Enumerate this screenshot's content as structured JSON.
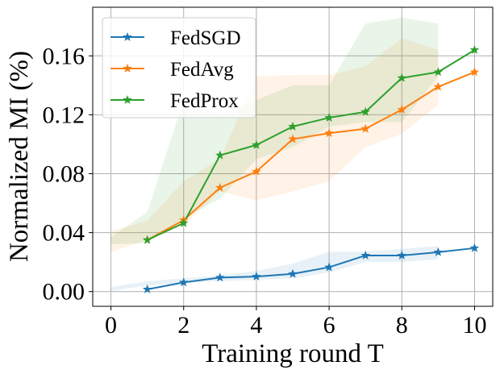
{
  "chart_data": {
    "type": "line",
    "title": "",
    "xlabel": "Training round T",
    "ylabel": "Normalized MI (%)",
    "xlim": [
      -0.5,
      10.5
    ],
    "ylim": [
      -0.01,
      0.193
    ],
    "xticks": [
      0,
      2,
      4,
      6,
      8,
      10
    ],
    "xtick_labels": [
      "0",
      "2",
      "4",
      "6",
      "8",
      "10"
    ],
    "yticks": [
      0.0,
      0.04,
      0.08,
      0.12,
      0.16
    ],
    "ytick_labels": [
      "0.00",
      "0.04",
      "0.08",
      "0.12",
      "0.16"
    ],
    "grid": true,
    "legend_position": "top-left",
    "series": [
      {
        "name": "FedSGD",
        "color": "#1f77b4",
        "marker": "star",
        "x": [
          1,
          2,
          3,
          4,
          5,
          6,
          7,
          8,
          9,
          10
        ],
        "values": [
          0.0015,
          0.0062,
          0.0095,
          0.0102,
          0.012,
          0.0165,
          0.0245,
          0.0245,
          0.0267,
          0.0295
        ],
        "band": {
          "x": [
            0,
            1,
            2,
            3,
            4,
            5,
            6,
            7,
            8,
            9
          ],
          "lower": [
            0.0005,
            0.004,
            0.006,
            0.007,
            0.008,
            0.009,
            0.013,
            0.02,
            0.02,
            0.022
          ],
          "upper": [
            0.003,
            0.007,
            0.009,
            0.011,
            0.014,
            0.019,
            0.027,
            0.027,
            0.029,
            0.031
          ]
        }
      },
      {
        "name": "FedAvg",
        "color": "#ff7f0e",
        "marker": "star",
        "x": [
          1,
          2,
          3,
          4,
          5,
          6,
          7,
          8,
          9,
          10
        ],
        "values": [
          0.035,
          0.0485,
          0.0705,
          0.0815,
          0.1035,
          0.1075,
          0.1105,
          0.1235,
          0.139,
          0.149
        ],
        "band": {
          "x": [
            0,
            1,
            2,
            3,
            4,
            5,
            6,
            7,
            8,
            9
          ],
          "lower": [
            0.027,
            0.035,
            0.045,
            0.068,
            0.062,
            0.068,
            0.075,
            0.098,
            0.107,
            0.127
          ],
          "upper": [
            0.041,
            0.048,
            0.075,
            0.09,
            0.146,
            0.147,
            0.147,
            0.153,
            0.172,
            0.164
          ]
        }
      },
      {
        "name": "FedProx",
        "color": "#2ca02c",
        "marker": "star",
        "x": [
          1,
          2,
          3,
          4,
          5,
          6,
          7,
          8,
          9,
          10
        ],
        "values": [
          0.035,
          0.0465,
          0.0925,
          0.0995,
          0.112,
          0.118,
          0.122,
          0.145,
          0.149,
          0.164
        ],
        "band": {
          "x": [
            0,
            1,
            2,
            3,
            4,
            5,
            6,
            7,
            8,
            9
          ],
          "lower": [
            0.032,
            0.033,
            0.05,
            0.063,
            0.09,
            0.098,
            0.112,
            0.115,
            0.115,
            0.146
          ],
          "upper": [
            0.037,
            0.054,
            0.13,
            0.12,
            0.13,
            0.14,
            0.14,
            0.182,
            0.186,
            0.182
          ]
        }
      }
    ]
  }
}
